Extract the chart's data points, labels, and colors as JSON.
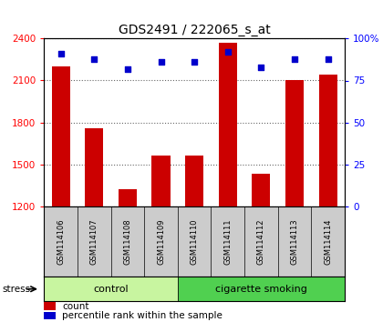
{
  "title": "GDS2491 / 222065_s_at",
  "samples": [
    "GSM114106",
    "GSM114107",
    "GSM114108",
    "GSM114109",
    "GSM114110",
    "GSM114111",
    "GSM114112",
    "GSM114113",
    "GSM114114"
  ],
  "counts": [
    2200,
    1760,
    1320,
    1560,
    1560,
    2370,
    1430,
    2100,
    2140
  ],
  "percentile_ranks": [
    91,
    88,
    82,
    86,
    86,
    92,
    83,
    88,
    88
  ],
  "groups": [
    {
      "label": "control",
      "start": 0,
      "end": 4,
      "color": "#c8f5a0"
    },
    {
      "label": "cigarette smoking",
      "start": 4,
      "end": 9,
      "color": "#50d050"
    }
  ],
  "stress_label": "stress",
  "ylim_left": [
    1200,
    2400
  ],
  "ylim_right": [
    0,
    100
  ],
  "yticks_left": [
    1200,
    1500,
    1800,
    2100,
    2400
  ],
  "yticks_right": [
    0,
    25,
    50,
    75,
    100
  ],
  "bar_color": "#cc0000",
  "dot_color": "#0000cc",
  "bar_width": 0.55,
  "bg_color": "#cccccc",
  "plot_bg_color": "#ffffff"
}
